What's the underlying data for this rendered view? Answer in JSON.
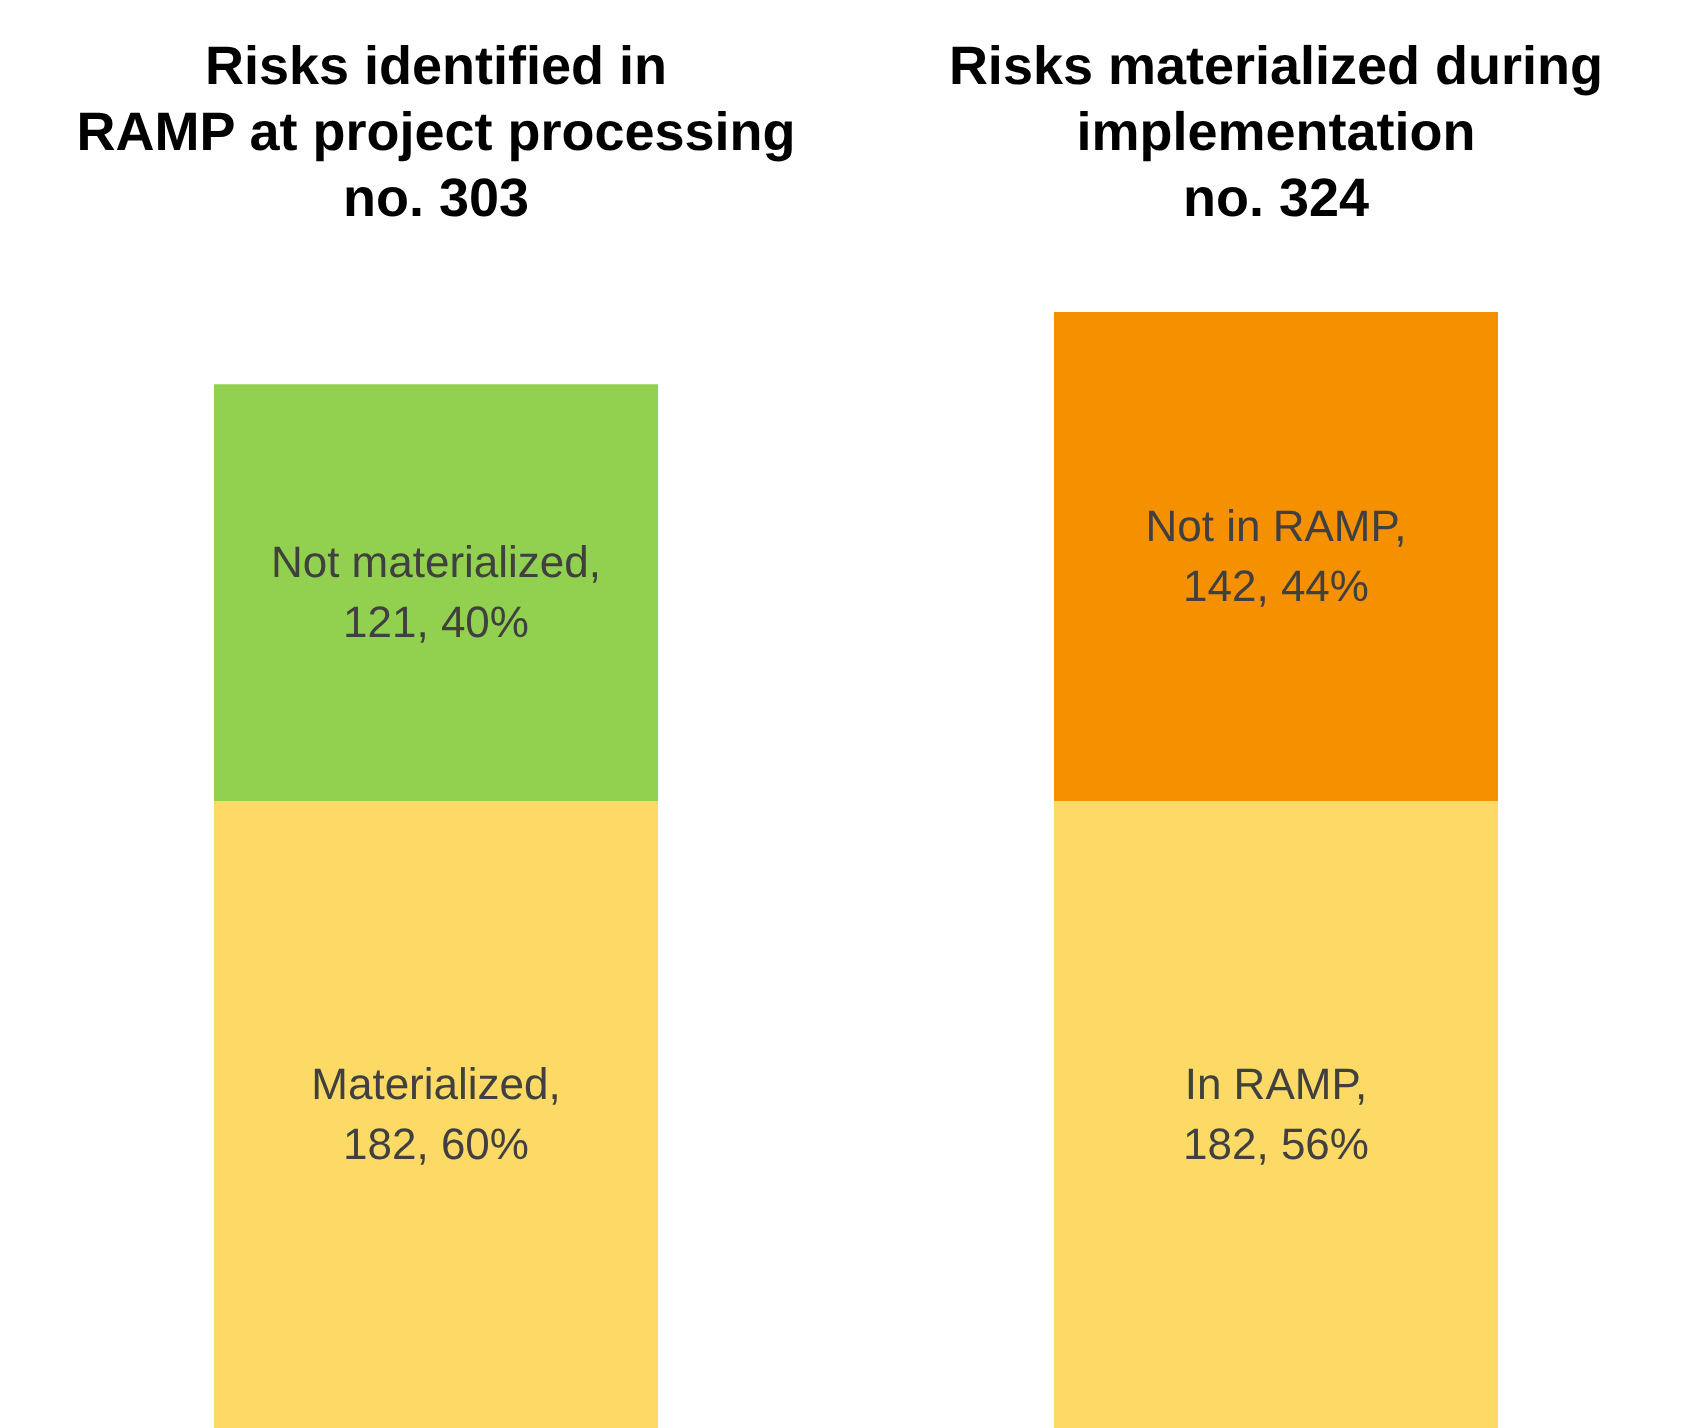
{
  "chart_data": {
    "type": "bar",
    "stacked": true,
    "categories": [
      "Risks identified in\nRAMP at project processing\nno. 303",
      "Risks materialized during\nimplementation\nno. 324"
    ],
    "series": [
      {
        "colors": [
          "#fdd966",
          "#fdd966"
        ],
        "values": [
          182,
          182
        ],
        "value_labels": [
          "Materialized,\n182, 60%",
          "In RAMP,\n182, 56%"
        ]
      },
      {
        "colors": [
          "#92d050",
          "#f59100"
        ],
        "values": [
          121,
          142
        ],
        "value_labels": [
          "Not materialized,\n121, 40%",
          "Not in RAMP,\n142, 44%"
        ]
      }
    ]
  }
}
